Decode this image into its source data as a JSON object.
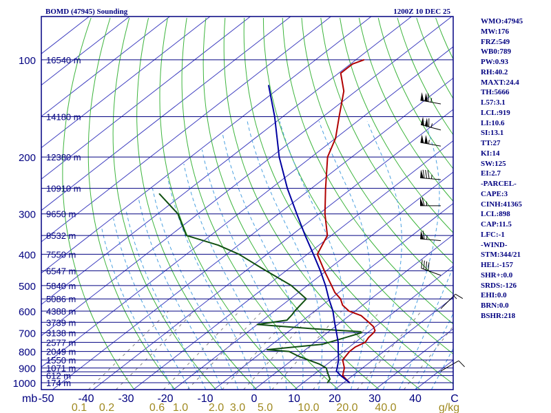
{
  "header": {
    "station": "BOMD (47945) Sounding",
    "datetime": "1200Z 10 DEC 25"
  },
  "indices": [
    "WMO:47945",
    "MW:176",
    "FRZ:549",
    "WB0:789",
    "PW:0.93",
    "RH:40.2",
    "MAXT:24.4",
    "TH:5666",
    "L57:3.1",
    "LCL:919",
    "LI:10.6",
    "SI:13.1",
    "TT:27",
    "KI:14",
    "SW:125",
    "EI:2.7",
    "-PARCEL-",
    "CAPE:3",
    "CINH:41365",
    "LCL:898",
    "CAP:11.5",
    "LFC:-1",
    "-WIND-",
    "STM:344/21",
    "HEL:-157",
    "SHR+:0.0",
    "SRDS:-126",
    "EHI:0.0",
    "BRN:0.0",
    "BSHR:218"
  ],
  "colors": {
    "isobar": "#000080",
    "isotherm": "#4040c0",
    "dry_adiabat": "#3cb43c",
    "moist_adiabat": "#4aa0e0",
    "mixing_ratio": "#808080",
    "temperature": "#b00000",
    "dewpoint": "#105010",
    "parcel": "#0000a0"
  },
  "chart_data": {
    "type": "line",
    "kind": "skew-t log-p sounding",
    "title": "BOMD (47945) Sounding",
    "subtitle": "1200Z 10 DEC 25",
    "pressure_ticks": [
      100,
      200,
      300,
      400,
      500,
      600,
      700,
      800,
      900,
      1000
    ],
    "isobar_levels": [
      100,
      150,
      200,
      250,
      300,
      350,
      400,
      450,
      500,
      550,
      600,
      650,
      700,
      750,
      800,
      850,
      900,
      925,
      950,
      1000
    ],
    "p_axis_unit": "mb",
    "temp_ticks": [
      "-50",
      "-40",
      "-30",
      "-20",
      "-10",
      "0",
      "10",
      "20",
      "30",
      "40",
      "C"
    ],
    "mixing_ratio_ticks": [
      "0.1",
      "0.2",
      "0.6",
      "1.0",
      "2.0",
      "3.0",
      "5.0",
      "10.0",
      "20.0",
      "40.0",
      "g/kg"
    ],
    "height_labels": [
      {
        "p": 100,
        "label": "16540 m"
      },
      {
        "p": 150,
        "label": "14180 m"
      },
      {
        "p": 200,
        "label": "12380 m"
      },
      {
        "p": 250,
        "label": "10910 m"
      },
      {
        "p": 300,
        "label": "9650 m"
      },
      {
        "p": 350,
        "label": "8532 m"
      },
      {
        "p": 400,
        "label": "7550 m"
      },
      {
        "p": 450,
        "label": "6547 m"
      },
      {
        "p": 500,
        "label": "5840 m"
      },
      {
        "p": 550,
        "label": "5086 m"
      },
      {
        "p": 600,
        "label": "4388 m"
      },
      {
        "p": 650,
        "label": "3739 m"
      },
      {
        "p": 700,
        "label": "3138 m"
      },
      {
        "p": 750,
        "label": "2577 m"
      },
      {
        "p": 800,
        "label": "2049 m"
      },
      {
        "p": 850,
        "label": "1550 m"
      },
      {
        "p": 900,
        "label": "1071 m"
      },
      {
        "p": 950,
        "label": "612 m"
      },
      {
        "p": 1000,
        "label": "174 m"
      }
    ],
    "series": [
      {
        "key": "temperature",
        "points": [
          [
            1000,
            21.5
          ],
          [
            975,
            19.5
          ],
          [
            950,
            17.5
          ],
          [
            925,
            16.5
          ],
          [
            900,
            15.5
          ],
          [
            850,
            12.5
          ],
          [
            800,
            11.5
          ],
          [
            775,
            11.5
          ],
          [
            750,
            12.5
          ],
          [
            725,
            11.8
          ],
          [
            700,
            11.5
          ],
          [
            690,
            11.2
          ],
          [
            670,
            9.5
          ],
          [
            650,
            7.0
          ],
          [
            620,
            3.0
          ],
          [
            600,
            -1.5
          ],
          [
            575,
            -5.0
          ],
          [
            550,
            -7.5
          ],
          [
            525,
            -11.0
          ],
          [
            500,
            -14.0
          ],
          [
            450,
            -20.5
          ],
          [
            400,
            -27.5
          ],
          [
            350,
            -31.0
          ],
          [
            300,
            -38.5
          ],
          [
            250,
            -46.5
          ],
          [
            200,
            -56.0
          ],
          [
            175,
            -60.0
          ],
          [
            150,
            -66.0
          ],
          [
            125,
            -73.0
          ],
          [
            110,
            -79.5
          ],
          [
            103,
            -79.5
          ],
          [
            100,
            -78.0
          ]
        ]
      },
      {
        "key": "dewpoint",
        "points": [
          [
            1000,
            16.0
          ],
          [
            975,
            15.5
          ],
          [
            950,
            14.0
          ],
          [
            925,
            12.5
          ],
          [
            900,
            11.0
          ],
          [
            875,
            8.0
          ],
          [
            850,
            4.0
          ],
          [
            825,
            0.0
          ],
          [
            800,
            -3.5
          ],
          [
            790,
            -9.5
          ],
          [
            760,
            2.5
          ],
          [
            730,
            5.5
          ],
          [
            700,
            8.5
          ],
          [
            695,
            8.0
          ],
          [
            680,
            -5.0
          ],
          [
            660,
            -20.0
          ],
          [
            640,
            -14.0
          ],
          [
            615,
            -14.5
          ],
          [
            600,
            -15.0
          ],
          [
            550,
            -16.0
          ],
          [
            500,
            -24.0
          ],
          [
            450,
            -35.0
          ],
          [
            400,
            -47.0
          ],
          [
            375,
            -55.0
          ],
          [
            350,
            -66.0
          ],
          [
            300,
            -75.0
          ],
          [
            260,
            -86.0
          ]
        ]
      },
      {
        "key": "parcel",
        "points": [
          [
            1000,
            21.5
          ],
          [
            950,
            17.0
          ],
          [
            920,
            14.5
          ],
          [
            900,
            13.7
          ],
          [
            850,
            11.5
          ],
          [
            800,
            8.7
          ],
          [
            750,
            5.8
          ],
          [
            700,
            2.3
          ],
          [
            650,
            -1.5
          ],
          [
            600,
            -5.5
          ],
          [
            550,
            -10.4
          ],
          [
            500,
            -15.5
          ],
          [
            450,
            -21.5
          ],
          [
            400,
            -28.5
          ],
          [
            350,
            -36.5
          ],
          [
            300,
            -45.5
          ],
          [
            250,
            -56.0
          ],
          [
            200,
            -68.0
          ],
          [
            150,
            -82.0
          ],
          [
            120,
            -93.5
          ]
        ]
      }
    ],
    "wind_barbs": [
      {
        "p": 137,
        "dir": 280,
        "kt": 115
      },
      {
        "p": 165,
        "dir": 285,
        "kt": 115
      },
      {
        "p": 185,
        "dir": 280,
        "kt": 105
      },
      {
        "p": 235,
        "dir": 275,
        "kt": 85
      },
      {
        "p": 283,
        "dir": 270,
        "kt": 65
      },
      {
        "p": 363,
        "dir": 275,
        "kt": 65
      },
      {
        "p": 465,
        "dir": 290,
        "kt": 40
      },
      {
        "p": 590,
        "dir": 45,
        "kt": 15
      },
      {
        "p": 920,
        "dir": 60,
        "kt": 10
      }
    ]
  }
}
